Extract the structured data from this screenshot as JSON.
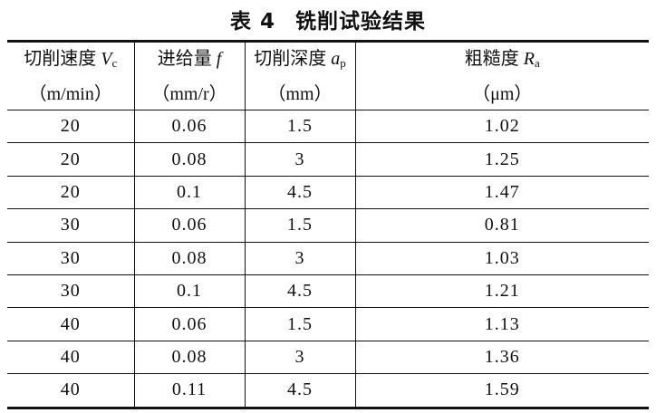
{
  "title": {
    "label": "表 4",
    "text": "铣削试验结果"
  },
  "headers": [
    {
      "name": "切削速度",
      "symbol": "V",
      "sub": "c",
      "unit": "（m/min）"
    },
    {
      "name": "进给量",
      "symbol": "f",
      "sub": "",
      "unit": "（mm/r）"
    },
    {
      "name": "切削深度",
      "symbol": "a",
      "sub": "p",
      "unit": "（mm）"
    },
    {
      "name": "粗糙度",
      "symbol": "R",
      "sub": "a",
      "unit": "（μm）"
    }
  ],
  "rows": [
    [
      "20",
      "0.06",
      "1.5",
      "1.02"
    ],
    [
      "20",
      "0.08",
      "3",
      "1.25"
    ],
    [
      "20",
      "0.1",
      "4.5",
      "1.47"
    ],
    [
      "30",
      "0.06",
      "1.5",
      "0.81"
    ],
    [
      "30",
      "0.08",
      "3",
      "1.03"
    ],
    [
      "30",
      "0.1",
      "4.5",
      "1.21"
    ],
    [
      "40",
      "0.06",
      "1.5",
      "1.13"
    ],
    [
      "40",
      "0.08",
      "3",
      "1.36"
    ],
    [
      "40",
      "0.11",
      "4.5",
      "1.59"
    ]
  ]
}
